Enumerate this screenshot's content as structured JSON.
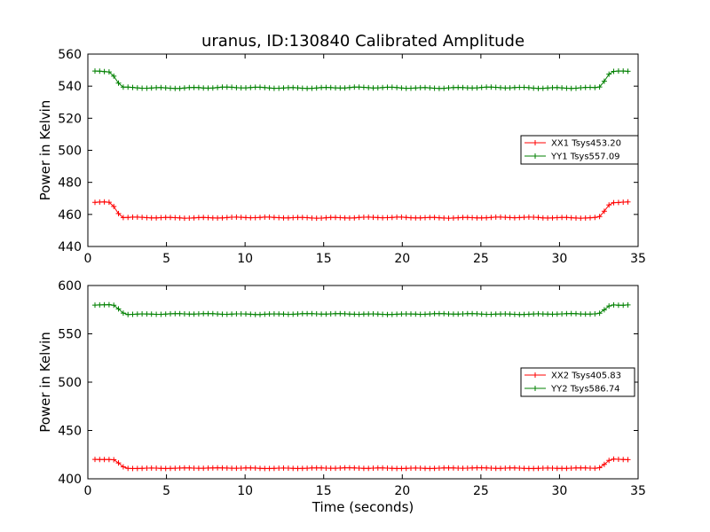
{
  "chart_data": [
    {
      "type": "line",
      "title": "uranus, ID:130840 Calibrated Amplitude",
      "xlabel": "",
      "ylabel": "Power in Kelvin",
      "xlim": [
        0,
        35
      ],
      "ylim": [
        440,
        560
      ],
      "xticks": [
        0,
        5,
        10,
        15,
        20,
        25,
        30,
        35
      ],
      "yticks": [
        440,
        460,
        480,
        500,
        520,
        540,
        560
      ],
      "grid": false,
      "legend_position": "center-right",
      "x_start": 0.45,
      "x_step": 0.3,
      "n_points": 114,
      "series": [
        {
          "name": "XX1 Tsys453.20",
          "color": "#ff0000",
          "baseline": 458,
          "edge_level": 467.5,
          "dip_start": 1.8,
          "dip_end": 32.9,
          "ripple": 0.35
        },
        {
          "name": "YY1 Tsys557.09",
          "color": "#008000",
          "baseline": 539,
          "edge_level": 549,
          "dip_start": 1.8,
          "dip_end": 32.9,
          "ripple": 0.45
        }
      ]
    },
    {
      "type": "line",
      "title": "",
      "xlabel": "Time (seconds)",
      "ylabel": "Power in Kelvin",
      "xlim": [
        0,
        35
      ],
      "ylim": [
        400,
        600
      ],
      "xticks": [
        0,
        5,
        10,
        15,
        20,
        25,
        30,
        35
      ],
      "yticks": [
        400,
        450,
        500,
        550,
        600
      ],
      "grid": false,
      "legend_position": "center-right",
      "x_start": 0.45,
      "x_step": 0.3,
      "n_points": 114,
      "series": [
        {
          "name": "XX2 Tsys405.83",
          "color": "#ff0000",
          "baseline": 411,
          "edge_level": 420,
          "dip_start": 2.0,
          "dip_end": 32.9,
          "ripple": 0.4
        },
        {
          "name": "YY2 Tsys586.74",
          "color": "#008000",
          "baseline": 570.5,
          "edge_level": 580,
          "dip_start": 2.0,
          "dip_end": 32.9,
          "ripple": 0.5
        }
      ]
    }
  ]
}
